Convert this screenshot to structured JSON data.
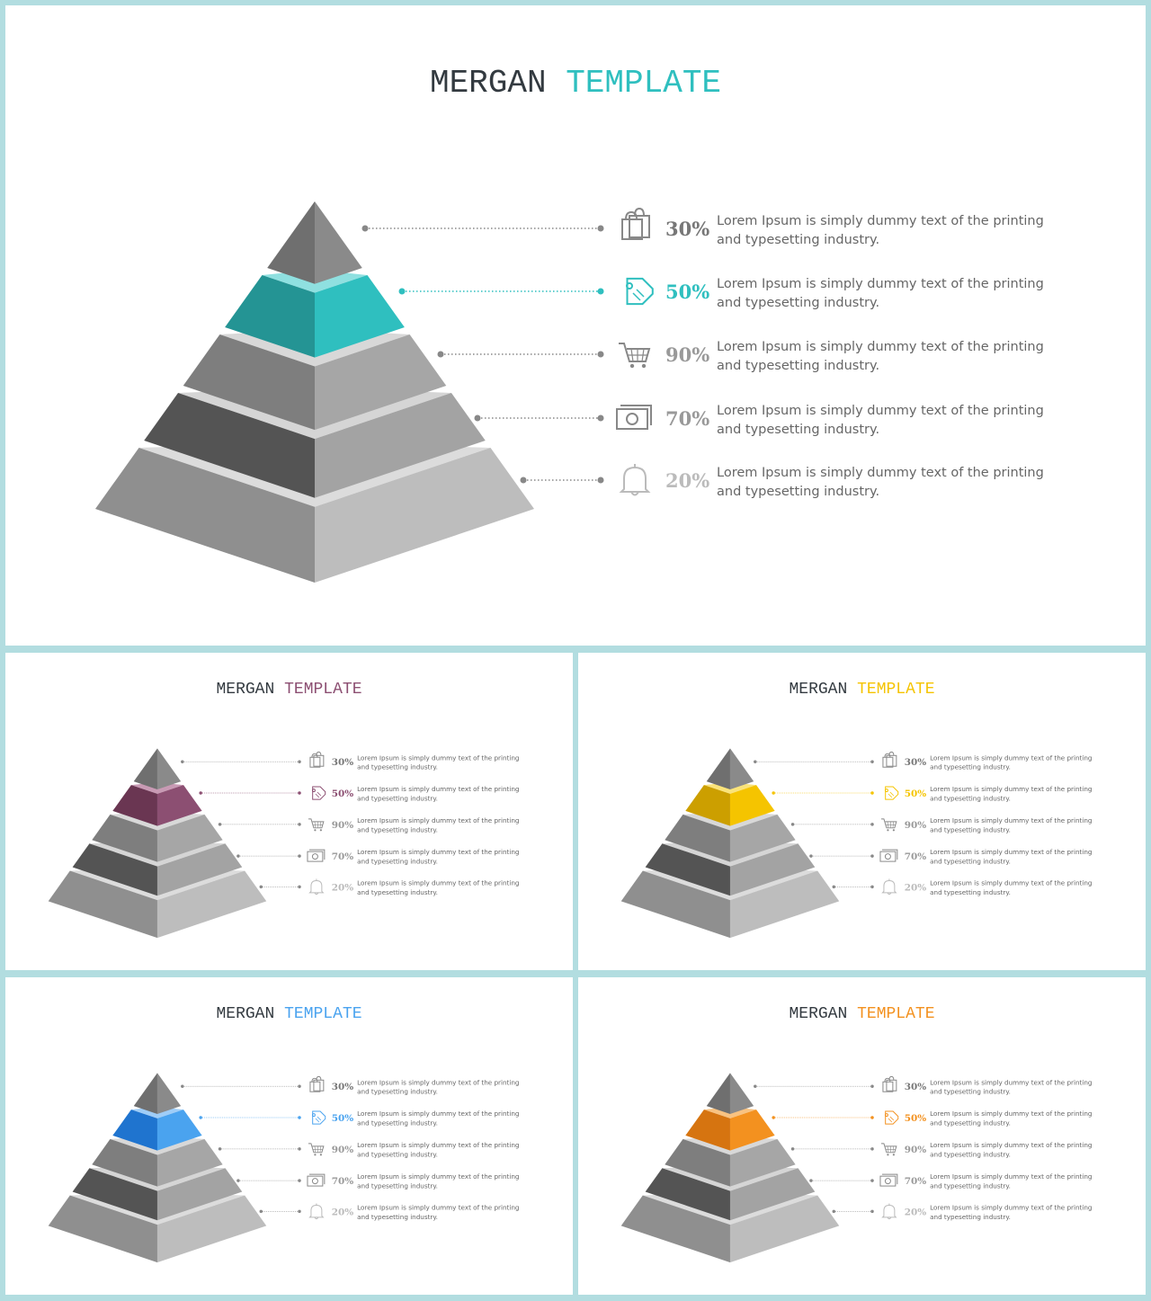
{
  "slides": [
    {
      "id": "main",
      "title_left": "MERGAN",
      "title_right": "TEMPLATE",
      "accent": "#2fbfbf",
      "accent_dark": "#249494",
      "accent_light": "#8fe0e0"
    },
    {
      "id": "purple",
      "title_left": "MERGAN",
      "title_right": "TEMPLATE",
      "accent": "#8c4f72",
      "accent_dark": "#6a3652",
      "accent_light": "#c89ab4"
    },
    {
      "id": "yellow",
      "title_left": "MERGAN",
      "title_right": "TEMPLATE",
      "accent": "#f5c400",
      "accent_dark": "#cc9f00",
      "accent_light": "#fae37a"
    },
    {
      "id": "blue",
      "title_left": "MERGAN",
      "title_right": "TEMPLATE",
      "accent": "#4aa3ef",
      "accent_dark": "#1f74cf",
      "accent_light": "#9fcdf7"
    },
    {
      "id": "orange",
      "title_left": "MERGAN",
      "title_right": "TEMPLATE",
      "accent": "#f3911f",
      "accent_dark": "#d67410",
      "accent_light": "#f8c281"
    }
  ],
  "levels": [
    {
      "percent": "30%",
      "icon": "shopping-bags-icon",
      "text_line1": "Lorem Ipsum is simply dummy text of the printing",
      "text_line2": "and typesetting industry."
    },
    {
      "percent": "50%",
      "icon": "price-tag-icon",
      "text_line1": "Lorem Ipsum is simply dummy text of the printing",
      "text_line2": "and typesetting industry."
    },
    {
      "percent": "90%",
      "icon": "shopping-cart-icon",
      "text_line1": "Lorem Ipsum is simply dummy text of the printing",
      "text_line2": "and typesetting industry."
    },
    {
      "percent": "70%",
      "icon": "banknote-icon",
      "text_line1": "Lorem Ipsum is simply dummy text of the printing",
      "text_line2": "and typesetting industry."
    },
    {
      "percent": "20%",
      "icon": "bell-icon",
      "text_line1": "Lorem Ipsum is simply dummy text of the printing",
      "text_line2": "and typesetting industry."
    }
  ],
  "highlight_level": 1,
  "neutral_colors": {
    "title_text": "#333a40",
    "line_dark": "#777777",
    "level_text": [
      "#777777",
      null,
      "#999999",
      "#999999",
      "#bbbbbb"
    ],
    "body_text": "#666666"
  }
}
